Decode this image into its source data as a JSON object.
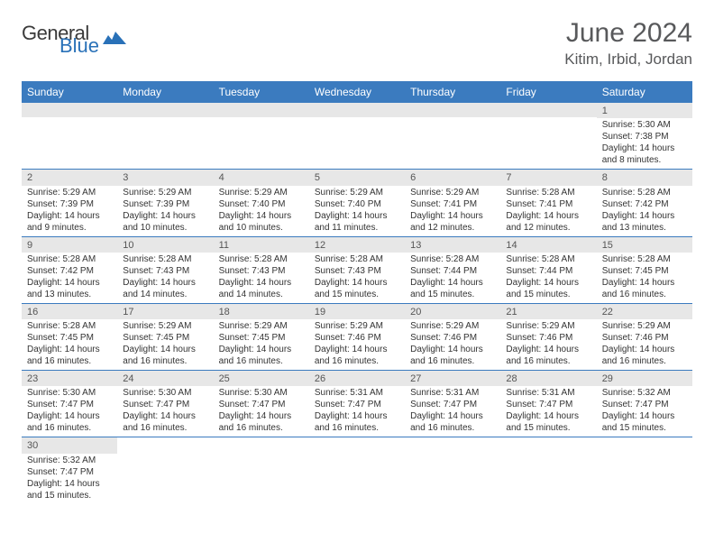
{
  "brand": {
    "main": "General",
    "sub": "Blue"
  },
  "title": "June 2024",
  "location": "Kitim, Irbid, Jordan",
  "colors": {
    "header_bg": "#3b7bbf",
    "header_text": "#ffffff",
    "daynum_bg": "#e7e7e7",
    "row_border": "#3b7bbf",
    "title_color": "#58595b",
    "logo_sub": "#2971b8"
  },
  "day_labels": [
    "Sunday",
    "Monday",
    "Tuesday",
    "Wednesday",
    "Thursday",
    "Friday",
    "Saturday"
  ],
  "weeks": [
    [
      {
        "n": "",
        "sr": "",
        "ss": "",
        "dl": ""
      },
      {
        "n": "",
        "sr": "",
        "ss": "",
        "dl": ""
      },
      {
        "n": "",
        "sr": "",
        "ss": "",
        "dl": ""
      },
      {
        "n": "",
        "sr": "",
        "ss": "",
        "dl": ""
      },
      {
        "n": "",
        "sr": "",
        "ss": "",
        "dl": ""
      },
      {
        "n": "",
        "sr": "",
        "ss": "",
        "dl": ""
      },
      {
        "n": "1",
        "sr": "Sunrise: 5:30 AM",
        "ss": "Sunset: 7:38 PM",
        "dl": "Daylight: 14 hours and 8 minutes."
      }
    ],
    [
      {
        "n": "2",
        "sr": "Sunrise: 5:29 AM",
        "ss": "Sunset: 7:39 PM",
        "dl": "Daylight: 14 hours and 9 minutes."
      },
      {
        "n": "3",
        "sr": "Sunrise: 5:29 AM",
        "ss": "Sunset: 7:39 PM",
        "dl": "Daylight: 14 hours and 10 minutes."
      },
      {
        "n": "4",
        "sr": "Sunrise: 5:29 AM",
        "ss": "Sunset: 7:40 PM",
        "dl": "Daylight: 14 hours and 10 minutes."
      },
      {
        "n": "5",
        "sr": "Sunrise: 5:29 AM",
        "ss": "Sunset: 7:40 PM",
        "dl": "Daylight: 14 hours and 11 minutes."
      },
      {
        "n": "6",
        "sr": "Sunrise: 5:29 AM",
        "ss": "Sunset: 7:41 PM",
        "dl": "Daylight: 14 hours and 12 minutes."
      },
      {
        "n": "7",
        "sr": "Sunrise: 5:28 AM",
        "ss": "Sunset: 7:41 PM",
        "dl": "Daylight: 14 hours and 12 minutes."
      },
      {
        "n": "8",
        "sr": "Sunrise: 5:28 AM",
        "ss": "Sunset: 7:42 PM",
        "dl": "Daylight: 14 hours and 13 minutes."
      }
    ],
    [
      {
        "n": "9",
        "sr": "Sunrise: 5:28 AM",
        "ss": "Sunset: 7:42 PM",
        "dl": "Daylight: 14 hours and 13 minutes."
      },
      {
        "n": "10",
        "sr": "Sunrise: 5:28 AM",
        "ss": "Sunset: 7:43 PM",
        "dl": "Daylight: 14 hours and 14 minutes."
      },
      {
        "n": "11",
        "sr": "Sunrise: 5:28 AM",
        "ss": "Sunset: 7:43 PM",
        "dl": "Daylight: 14 hours and 14 minutes."
      },
      {
        "n": "12",
        "sr": "Sunrise: 5:28 AM",
        "ss": "Sunset: 7:43 PM",
        "dl": "Daylight: 14 hours and 15 minutes."
      },
      {
        "n": "13",
        "sr": "Sunrise: 5:28 AM",
        "ss": "Sunset: 7:44 PM",
        "dl": "Daylight: 14 hours and 15 minutes."
      },
      {
        "n": "14",
        "sr": "Sunrise: 5:28 AM",
        "ss": "Sunset: 7:44 PM",
        "dl": "Daylight: 14 hours and 15 minutes."
      },
      {
        "n": "15",
        "sr": "Sunrise: 5:28 AM",
        "ss": "Sunset: 7:45 PM",
        "dl": "Daylight: 14 hours and 16 minutes."
      }
    ],
    [
      {
        "n": "16",
        "sr": "Sunrise: 5:28 AM",
        "ss": "Sunset: 7:45 PM",
        "dl": "Daylight: 14 hours and 16 minutes."
      },
      {
        "n": "17",
        "sr": "Sunrise: 5:29 AM",
        "ss": "Sunset: 7:45 PM",
        "dl": "Daylight: 14 hours and 16 minutes."
      },
      {
        "n": "18",
        "sr": "Sunrise: 5:29 AM",
        "ss": "Sunset: 7:45 PM",
        "dl": "Daylight: 14 hours and 16 minutes."
      },
      {
        "n": "19",
        "sr": "Sunrise: 5:29 AM",
        "ss": "Sunset: 7:46 PM",
        "dl": "Daylight: 14 hours and 16 minutes."
      },
      {
        "n": "20",
        "sr": "Sunrise: 5:29 AM",
        "ss": "Sunset: 7:46 PM",
        "dl": "Daylight: 14 hours and 16 minutes."
      },
      {
        "n": "21",
        "sr": "Sunrise: 5:29 AM",
        "ss": "Sunset: 7:46 PM",
        "dl": "Daylight: 14 hours and 16 minutes."
      },
      {
        "n": "22",
        "sr": "Sunrise: 5:29 AM",
        "ss": "Sunset: 7:46 PM",
        "dl": "Daylight: 14 hours and 16 minutes."
      }
    ],
    [
      {
        "n": "23",
        "sr": "Sunrise: 5:30 AM",
        "ss": "Sunset: 7:47 PM",
        "dl": "Daylight: 14 hours and 16 minutes."
      },
      {
        "n": "24",
        "sr": "Sunrise: 5:30 AM",
        "ss": "Sunset: 7:47 PM",
        "dl": "Daylight: 14 hours and 16 minutes."
      },
      {
        "n": "25",
        "sr": "Sunrise: 5:30 AM",
        "ss": "Sunset: 7:47 PM",
        "dl": "Daylight: 14 hours and 16 minutes."
      },
      {
        "n": "26",
        "sr": "Sunrise: 5:31 AM",
        "ss": "Sunset: 7:47 PM",
        "dl": "Daylight: 14 hours and 16 minutes."
      },
      {
        "n": "27",
        "sr": "Sunrise: 5:31 AM",
        "ss": "Sunset: 7:47 PM",
        "dl": "Daylight: 14 hours and 16 minutes."
      },
      {
        "n": "28",
        "sr": "Sunrise: 5:31 AM",
        "ss": "Sunset: 7:47 PM",
        "dl": "Daylight: 14 hours and 15 minutes."
      },
      {
        "n": "29",
        "sr": "Sunrise: 5:32 AM",
        "ss": "Sunset: 7:47 PM",
        "dl": "Daylight: 14 hours and 15 minutes."
      }
    ],
    [
      {
        "n": "30",
        "sr": "Sunrise: 5:32 AM",
        "ss": "Sunset: 7:47 PM",
        "dl": "Daylight: 14 hours and 15 minutes."
      },
      {
        "n": "",
        "sr": "",
        "ss": "",
        "dl": ""
      },
      {
        "n": "",
        "sr": "",
        "ss": "",
        "dl": ""
      },
      {
        "n": "",
        "sr": "",
        "ss": "",
        "dl": ""
      },
      {
        "n": "",
        "sr": "",
        "ss": "",
        "dl": ""
      },
      {
        "n": "",
        "sr": "",
        "ss": "",
        "dl": ""
      },
      {
        "n": "",
        "sr": "",
        "ss": "",
        "dl": ""
      }
    ]
  ]
}
